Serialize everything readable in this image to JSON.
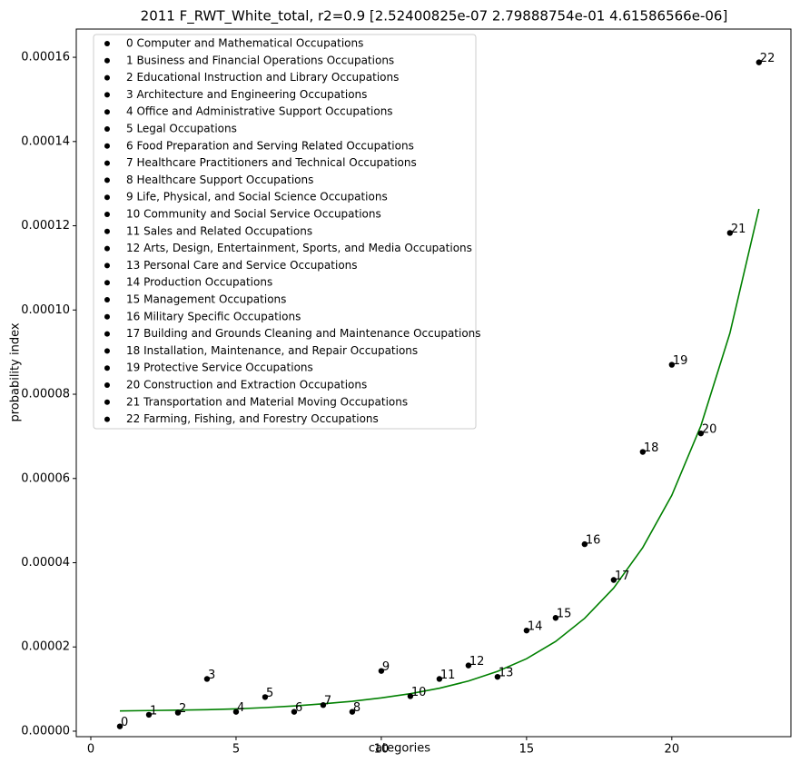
{
  "chart_data": {
    "type": "scatter",
    "title": "2011 F_RWT_White_total, r2=0.9  [2.52400825e-07 2.79888754e-01 4.61586566e-06]",
    "xlabel": "categories",
    "ylabel": "probability index",
    "xlim": [
      -0.5,
      24.1
    ],
    "ylim": [
      -1.3e-06,
      0.0001667
    ],
    "xticks": [
      0,
      5,
      10,
      15,
      20
    ],
    "yticks": [
      {
        "value": 0,
        "label": "0.00000"
      },
      {
        "value": 2e-05,
        "label": "0.00002"
      },
      {
        "value": 4e-05,
        "label": "0.00004"
      },
      {
        "value": 6e-05,
        "label": "0.00006"
      },
      {
        "value": 8e-05,
        "label": "0.00008"
      },
      {
        "value": 0.0001,
        "label": "0.00010"
      },
      {
        "value": 0.00012,
        "label": "0.00012"
      },
      {
        "value": 0.00014,
        "label": "0.00014"
      },
      {
        "value": 0.00016,
        "label": "0.00016"
      }
    ],
    "points": {
      "color": "#000000",
      "names": [
        "0 Computer and Mathematical Occupations",
        "1 Business and Financial Operations Occupations",
        "2 Educational Instruction and Library Occupations",
        "3 Architecture and Engineering Occupations",
        "4 Office and Administrative Support Occupations",
        "5 Legal Occupations",
        "6 Food Preparation and Serving Related Occupations",
        "7 Healthcare Practitioners and Technical Occupations",
        "8 Healthcare Support Occupations",
        "9 Life, Physical, and Social Science Occupations",
        "10 Community and Social Service Occupations",
        "11 Sales and Related Occupations",
        "12 Arts, Design, Entertainment, Sports, and Media Occupations",
        "13 Personal Care and Service Occupations",
        "14 Production Occupations",
        "15 Management Occupations",
        "16 Military Specific Occupations",
        "17 Building and Grounds Cleaning and Maintenance Occupations",
        "18 Installation, Maintenance, and Repair Occupations",
        "19 Protective Service Occupations",
        "20 Construction and Extraction Occupations",
        "21 Transportation and Material Moving Occupations",
        "22 Farming, Fishing, and Forestry Occupations"
      ],
      "labels": [
        "0",
        "1",
        "2",
        "3",
        "4",
        "5",
        "6",
        "7",
        "8",
        "9",
        "10",
        "11",
        "12",
        "13",
        "14",
        "15",
        "16",
        "17",
        "18",
        "19",
        "20",
        "21",
        "22"
      ],
      "x": [
        1,
        2,
        3,
        4,
        5,
        6,
        7,
        8,
        9,
        10,
        11,
        12,
        13,
        14,
        15,
        16,
        17,
        18,
        19,
        20,
        21,
        22,
        23
      ],
      "values": [
        1.15e-06,
        3.9e-06,
        4.4e-06,
        1.24e-05,
        4.6e-06,
        8.1e-06,
        4.6e-06,
        6.2e-06,
        4.6e-06,
        1.43e-05,
        8.3e-06,
        1.24e-05,
        1.56e-05,
        1.29e-05,
        2.39e-05,
        2.69e-05,
        4.44e-05,
        3.59e-05,
        6.63e-05,
        8.7e-05,
        7.07e-05,
        0.0001183,
        0.0001588
      ]
    },
    "fit": {
      "color": "#008000",
      "x": [
        1,
        2,
        3,
        4,
        5,
        6,
        7,
        8,
        9,
        10,
        11,
        12,
        13,
        14,
        15,
        16,
        17,
        18,
        19,
        20,
        21,
        22,
        23
      ],
      "values": [
        4.8e-06,
        4.9e-06,
        5e-06,
        5.1e-06,
        5.3e-06,
        5.6e-06,
        6e-06,
        6.5e-06,
        7.1e-06,
        7.9e-06,
        8.9e-06,
        1.02e-05,
        1.19e-05,
        1.42e-05,
        1.72e-05,
        2.13e-05,
        2.68e-05,
        3.4e-05,
        4.36e-05,
        5.6e-05,
        7.25e-05,
        9.45e-05,
        0.000124
      ]
    }
  }
}
